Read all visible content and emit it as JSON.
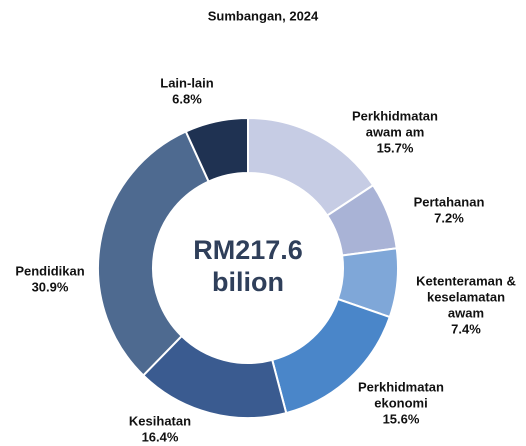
{
  "chart_data": {
    "type": "donut",
    "title": "Sumbangan, 2024",
    "center_label": [
      "RM217.6",
      "bilion"
    ],
    "categories": [
      [
        "Perkhidmatan",
        "awam am"
      ],
      [
        "Pertahanan"
      ],
      [
        "Ketenteraman &",
        "keselamatan",
        "awam"
      ],
      [
        "Perkhidmatan",
        "ekonomi"
      ],
      [
        "Kesihatan"
      ],
      [
        "Pendidikan"
      ],
      [
        "Lain-lain"
      ]
    ],
    "values": [
      15.7,
      7.2,
      7.4,
      15.6,
      16.4,
      30.9,
      6.8
    ],
    "value_labels": [
      "15.7%",
      "7.2%",
      "7.4%",
      "15.6%",
      "16.4%",
      "30.9%",
      "6.8%"
    ],
    "colors": [
      "#c6cce4",
      "#a9b3d6",
      "#7fa7d8",
      "#4a86c9",
      "#3a5b90",
      "#4e6a90",
      "#1f3252"
    ]
  }
}
